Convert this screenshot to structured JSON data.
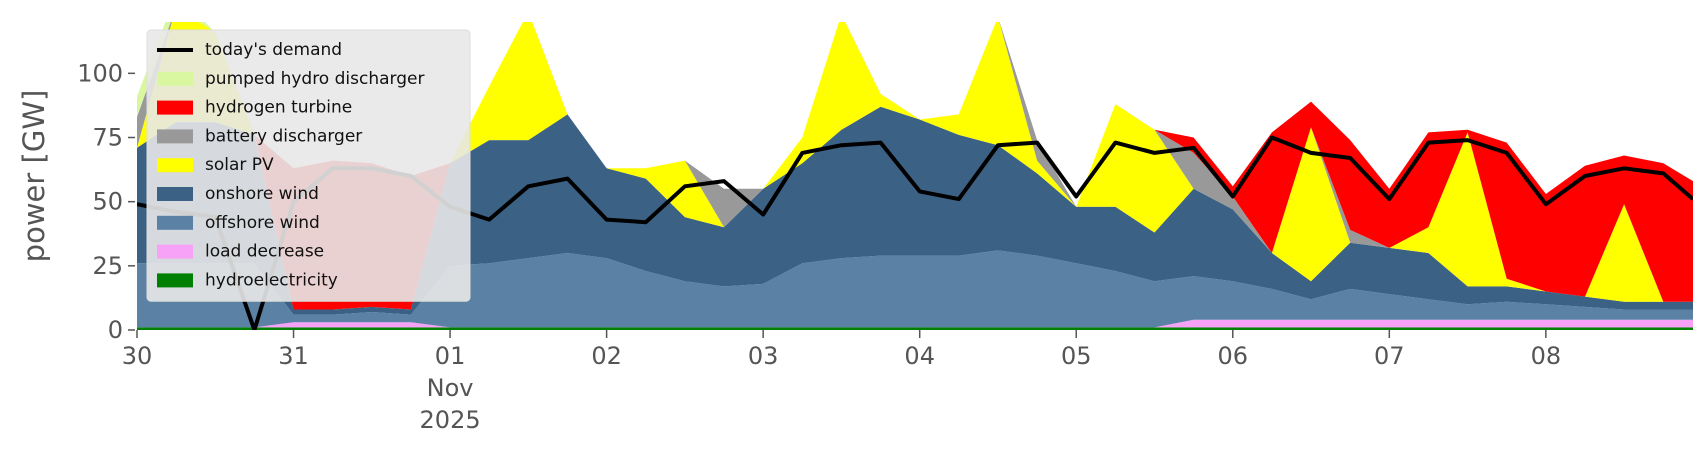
{
  "chart_data": {
    "type": "area",
    "y_label": "power [GW]",
    "x": [
      0,
      0.25,
      0.5,
      0.75,
      1,
      1.25,
      1.5,
      1.75,
      2,
      2.25,
      2.5,
      2.75,
      3,
      3.25,
      3.5,
      3.75,
      4,
      4.25,
      4.5,
      4.75,
      5,
      5.25,
      5.5,
      5.75,
      6,
      6.25,
      6.5,
      6.75,
      7,
      7.25,
      7.5,
      7.75,
      8,
      8.25,
      8.5,
      8.75,
      9,
      9.25,
      9.5,
      9.75,
      9.94
    ],
    "xlim": [
      0,
      9.94
    ],
    "xticks": [
      {
        "value": 0,
        "label": "30"
      },
      {
        "value": 1,
        "label": "31"
      },
      {
        "value": 2,
        "label": "01"
      },
      {
        "value": 3,
        "label": "02"
      },
      {
        "value": 4,
        "label": "03"
      },
      {
        "value": 5,
        "label": "04"
      },
      {
        "value": 6,
        "label": "05"
      },
      {
        "value": 7,
        "label": "06"
      },
      {
        "value": 8,
        "label": "07"
      },
      {
        "value": 9,
        "label": "08"
      }
    ],
    "x_month_label": "Nov",
    "x_year_label": "2025",
    "ylim": [
      0,
      120
    ],
    "yticks": [
      0,
      25,
      50,
      75,
      100
    ],
    "legend": "upper left",
    "demand": {
      "name": "today's demand",
      "color": "#000000",
      "values": [
        49,
        46,
        44,
        0,
        50,
        63,
        63,
        60,
        48,
        43,
        56,
        59,
        43,
        42,
        56,
        58,
        45,
        69,
        72,
        73,
        54,
        51,
        72,
        73,
        52,
        73,
        69,
        71,
        52,
        75,
        69,
        67,
        51,
        73,
        74,
        69,
        49,
        60,
        63,
        61,
        51
      ]
    },
    "series": [
      {
        "name": "hydroelectricity",
        "color": "#008000",
        "values": [
          1,
          1,
          1,
          1,
          1,
          1,
          1,
          1,
          1,
          1,
          1,
          1,
          1,
          1,
          1,
          1,
          1,
          1,
          1,
          1,
          1,
          1,
          1,
          1,
          1,
          1,
          1,
          1,
          1,
          1,
          1,
          1,
          1,
          1,
          1,
          1,
          1,
          1,
          1,
          1,
          1
        ]
      },
      {
        "name": "load decrease",
        "color": "#f7a1f7",
        "values": [
          0,
          0,
          0,
          0,
          2,
          2,
          2,
          2,
          0,
          0,
          0,
          0,
          0,
          0,
          0,
          0,
          0,
          0,
          0,
          0,
          0,
          0,
          0,
          0,
          0,
          0,
          0,
          3,
          3,
          3,
          3,
          3,
          3,
          3,
          3,
          3,
          3,
          3,
          3,
          3,
          3
        ]
      },
      {
        "name": "offshore wind",
        "color": "#5b81a4",
        "values": [
          25,
          25,
          25,
          25,
          3,
          3,
          4,
          3,
          24,
          25,
          27,
          29,
          27,
          22,
          18,
          16,
          17,
          25,
          27,
          28,
          28,
          28,
          30,
          28,
          25,
          22,
          18,
          17,
          15,
          12,
          8,
          12,
          10,
          8,
          6,
          7,
          6,
          5,
          4,
          4,
          4
        ]
      },
      {
        "name": "onshore wind",
        "color": "#3b6185",
        "values": [
          45,
          55,
          55,
          50,
          2,
          2,
          2,
          2,
          40,
          48,
          46,
          54,
          35,
          36,
          25,
          23,
          37,
          39,
          50,
          58,
          53,
          47,
          41,
          32,
          22,
          25,
          19,
          34,
          28,
          14,
          7,
          18,
          18,
          18,
          7,
          6,
          5,
          4,
          3,
          3,
          3
        ]
      },
      {
        "name": "solar PV",
        "color": "#ffff00",
        "values": [
          0,
          45,
          35,
          0,
          0,
          0,
          0,
          0,
          0,
          21,
          50,
          0,
          0,
          4,
          22,
          0,
          0,
          10,
          45,
          5,
          0,
          8,
          50,
          5,
          0,
          40,
          40,
          0,
          0,
          0,
          60,
          0,
          0,
          10,
          60,
          3,
          0,
          0,
          38,
          0,
          0
        ]
      },
      {
        "name": "battery discharger",
        "color": "#999999",
        "values": [
          12,
          0,
          0,
          0,
          0,
          0,
          0,
          0,
          0,
          0,
          0,
          0,
          0,
          0,
          0,
          15,
          0,
          0,
          0,
          0,
          0,
          0,
          0,
          8,
          0,
          0,
          0,
          14,
          5,
          0,
          0,
          5,
          0,
          0,
          0,
          0,
          0,
          0,
          0,
          0,
          0
        ]
      },
      {
        "name": "hydrogen turbine",
        "color": "#ff0000",
        "values": [
          0,
          0,
          0,
          0,
          55,
          58,
          56,
          52,
          0,
          0,
          0,
          0,
          0,
          0,
          0,
          0,
          0,
          0,
          0,
          0,
          0,
          0,
          0,
          0,
          0,
          0,
          0,
          6,
          4,
          47,
          10,
          35,
          23,
          37,
          1,
          53,
          38,
          51,
          19,
          54,
          47
        ]
      },
      {
        "name": "pumped hydro discharger",
        "color": "#d9f7a1",
        "values": [
          8,
          5,
          0,
          0,
          0,
          0,
          0,
          0,
          0,
          0,
          0,
          0,
          0,
          0,
          0,
          0,
          0,
          0,
          0,
          0,
          0,
          0,
          0,
          0,
          0,
          0,
          0,
          0,
          0,
          0,
          0,
          0,
          0,
          0,
          0,
          0,
          0,
          0,
          0,
          0,
          0
        ]
      }
    ]
  }
}
